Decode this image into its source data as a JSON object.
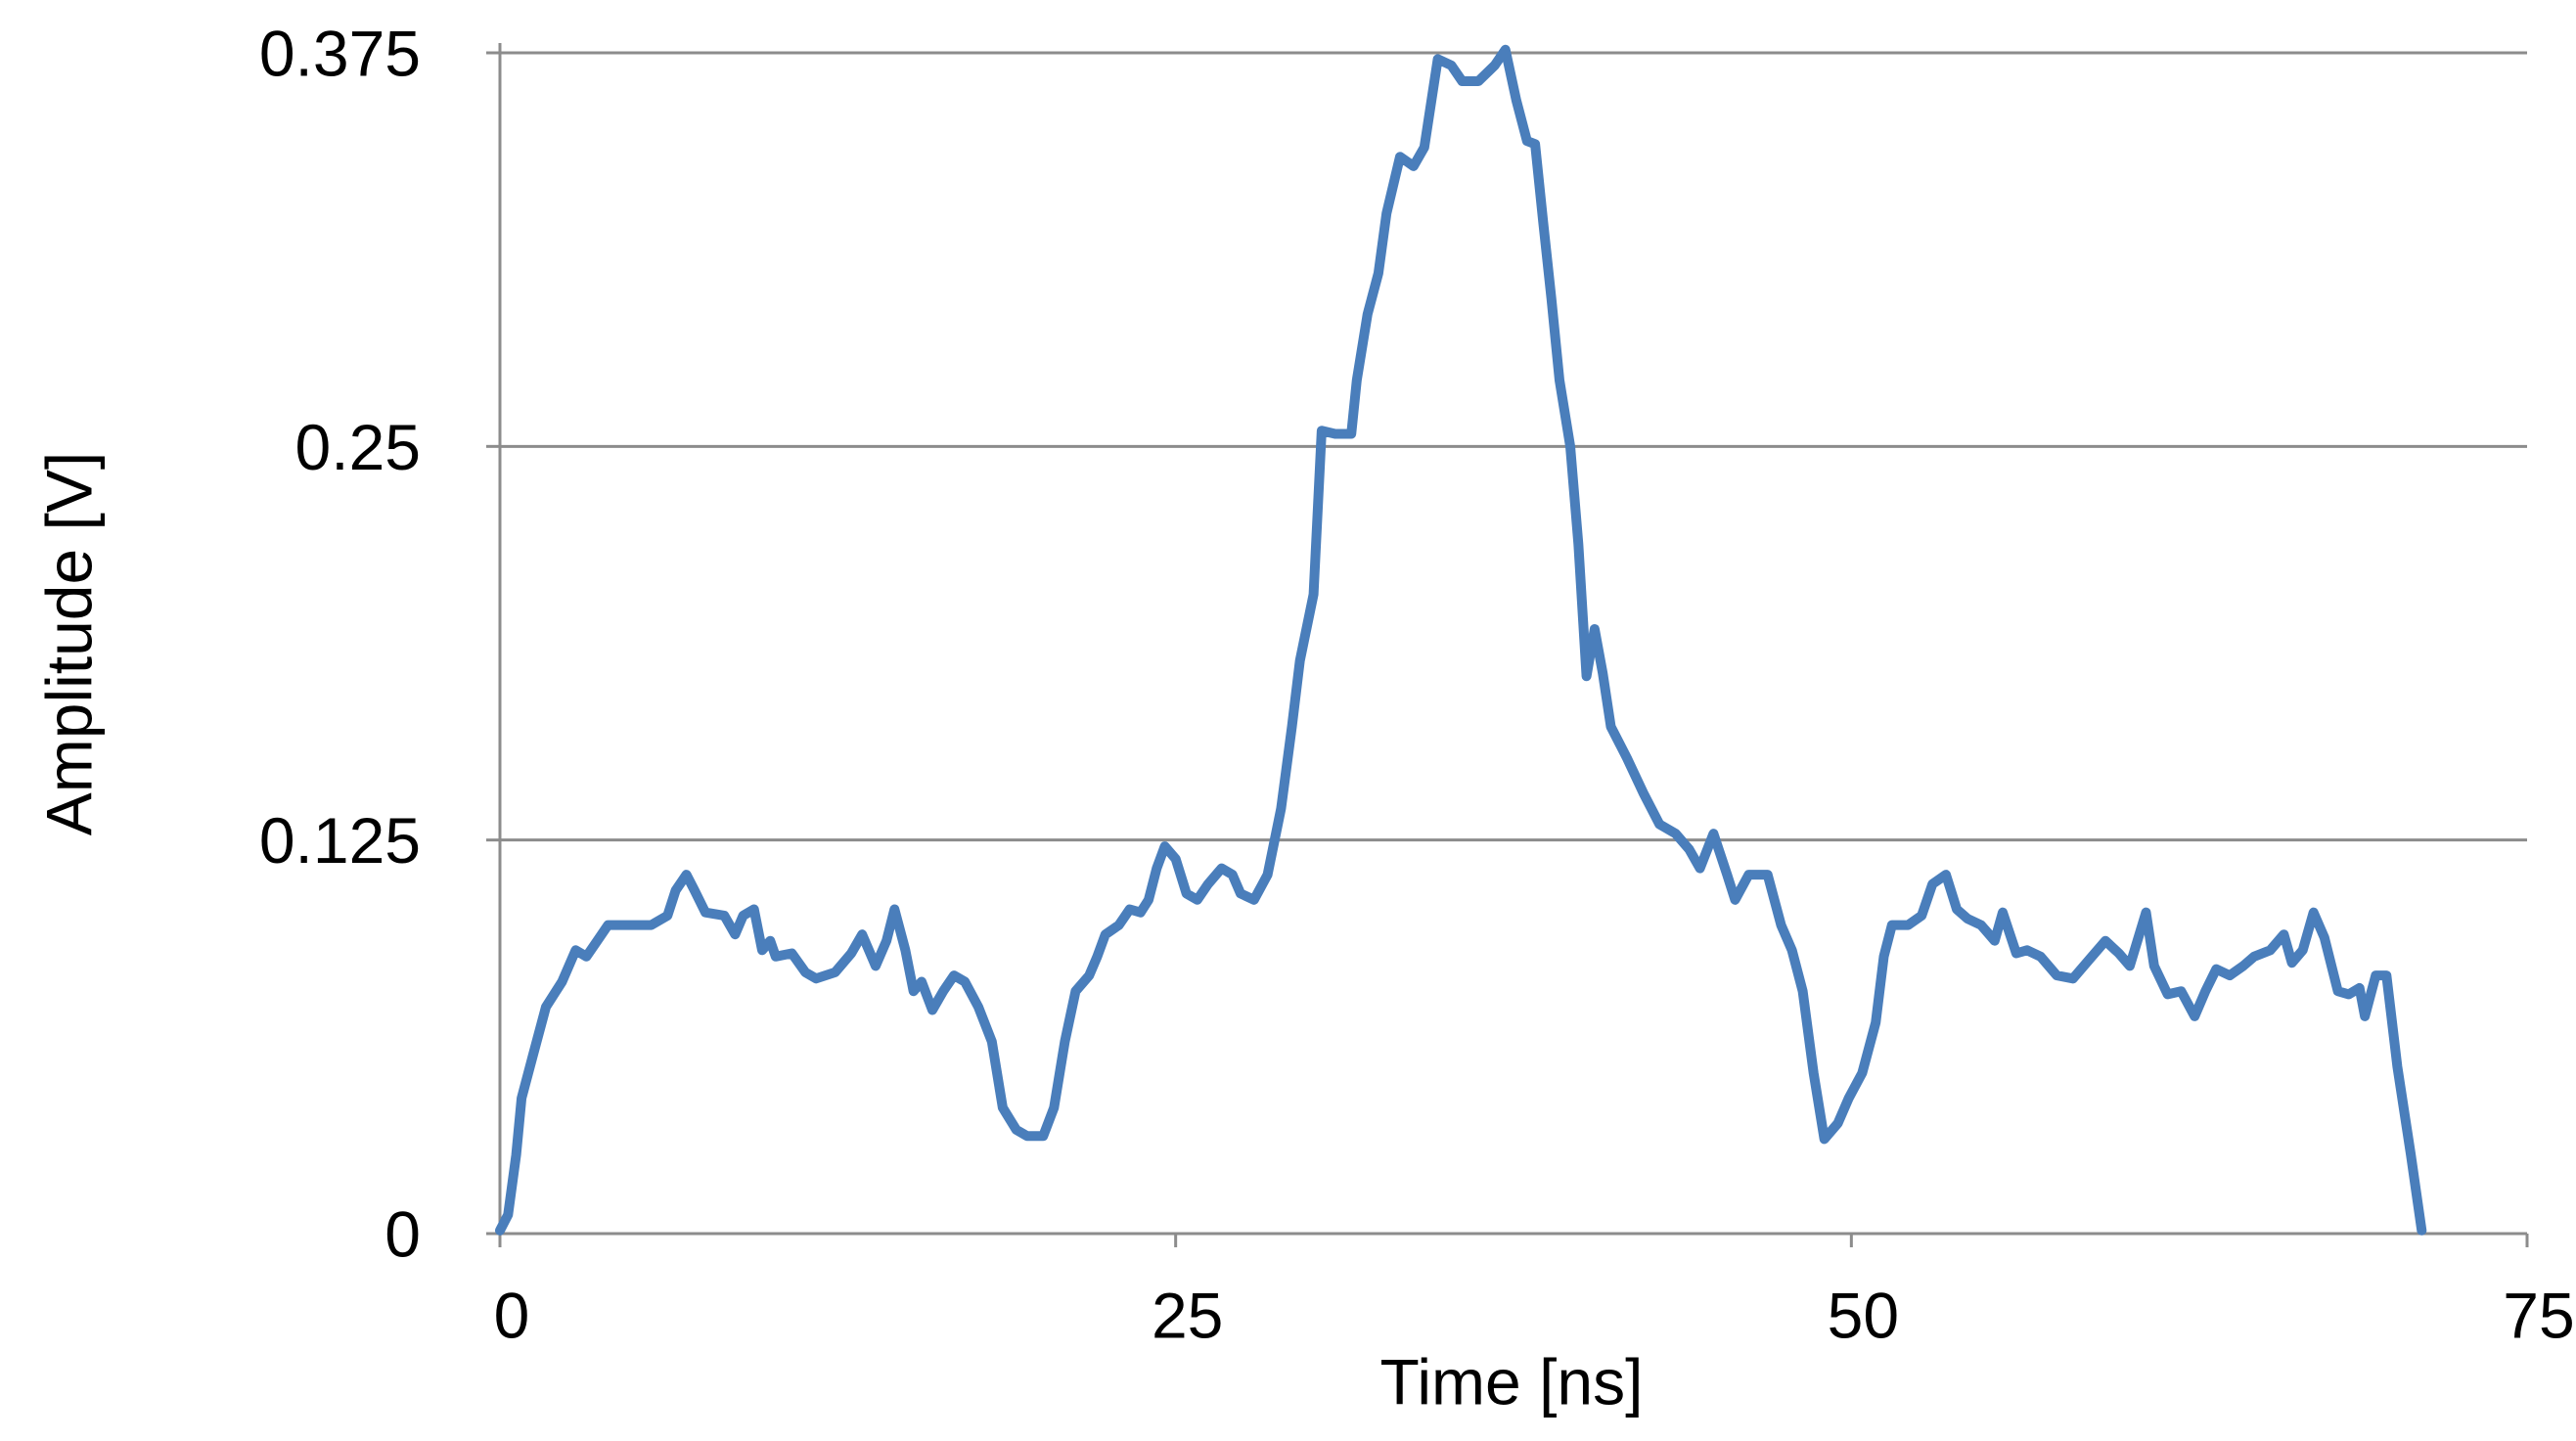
{
  "chart_data": {
    "type": "line",
    "x_label": "Time [ns]",
    "y_label": "Amplitude [V]",
    "xlim": [
      0,
      75
    ],
    "xticks": [
      0,
      25,
      50,
      75
    ],
    "ylim": [
      0,
      0.375
    ],
    "yticks": [
      0,
      0.125,
      0.25,
      0.375
    ],
    "grid": true,
    "x": [
      0,
      0.3,
      0.6,
      0.8,
      1.2,
      1.7,
      2.3,
      2.8,
      3.2,
      3.6,
      4.0,
      4.7,
      5.6,
      6.2,
      6.5,
      6.9,
      7.2,
      7.6,
      8.3,
      8.7,
      9.0,
      9.4,
      9.7,
      10.0,
      10.2,
      10.8,
      11.3,
      11.7,
      12.4,
      13.0,
      13.4,
      13.9,
      14.3,
      14.6,
      15.0,
      15.3,
      15.6,
      16.0,
      16.4,
      16.8,
      17.2,
      17.7,
      18.2,
      18.6,
      19.1,
      19.5,
      20.1,
      20.5,
      20.9,
      21.3,
      21.8,
      22.1,
      22.4,
      22.9,
      23.3,
      23.7,
      24.0,
      24.3,
      24.6,
      25.0,
      25.4,
      25.8,
      26.2,
      26.7,
      27.1,
      27.4,
      27.9,
      28.4,
      28.9,
      29.3,
      29.6,
      30.1,
      30.4,
      30.9,
      31.5,
      31.7,
      32.1,
      32.5,
      32.8,
      33.3,
      33.8,
      34.2,
      34.7,
      35.2,
      35.6,
      36.2,
      36.8,
      37.2,
      37.6,
      38.0,
      38.3,
      38.6,
      38.9,
      39.2,
      39.6,
      39.9,
      40.2,
      40.5,
      40.8,
      41.1,
      41.7,
      42.3,
      42.9,
      43.5,
      44.0,
      44.4,
      44.9,
      45.4,
      45.7,
      46.2,
      46.9,
      47.4,
      47.8,
      48.2,
      48.6,
      49.0,
      49.5,
      49.9,
      50.4,
      50.9,
      51.2,
      51.5,
      52.1,
      52.6,
      53.0,
      53.5,
      53.9,
      54.3,
      54.8,
      55.3,
      55.6,
      56.1,
      56.5,
      57.0,
      57.6,
      58.2,
      58.8,
      59.4,
      59.9,
      60.3,
      60.9,
      61.2,
      61.7,
      62.2,
      62.7,
      63.1,
      63.5,
      64.0,
      64.5,
      64.9,
      65.5,
      66.0,
      66.3,
      66.7,
      67.1,
      67.5,
      68.0,
      68.4,
      68.8,
      69.0,
      69.4,
      69.8,
      70.2,
      70.7,
      71.1
    ],
    "series": [
      {
        "color": "#4a7ebb",
        "values": [
          0.001,
          0.006,
          0.025,
          0.043,
          0.056,
          0.072,
          0.08,
          0.09,
          0.088,
          0.093,
          0.098,
          0.098,
          0.098,
          0.101,
          0.109,
          0.114,
          0.109,
          0.102,
          0.101,
          0.095,
          0.101,
          0.103,
          0.09,
          0.093,
          0.088,
          0.089,
          0.083,
          0.081,
          0.083,
          0.089,
          0.095,
          0.085,
          0.093,
          0.103,
          0.09,
          0.077,
          0.08,
          0.071,
          0.077,
          0.082,
          0.08,
          0.072,
          0.061,
          0.04,
          0.033,
          0.031,
          0.031,
          0.04,
          0.061,
          0.077,
          0.082,
          0.088,
          0.095,
          0.098,
          0.103,
          0.102,
          0.106,
          0.116,
          0.123,
          0.119,
          0.108,
          0.106,
          0.111,
          0.116,
          0.114,
          0.108,
          0.106,
          0.114,
          0.135,
          0.161,
          0.182,
          0.203,
          0.255,
          0.254,
          0.254,
          0.271,
          0.292,
          0.305,
          0.324,
          0.342,
          0.339,
          0.345,
          0.373,
          0.371,
          0.366,
          0.366,
          0.371,
          0.376,
          0.36,
          0.347,
          0.346,
          0.321,
          0.297,
          0.271,
          0.25,
          0.219,
          0.177,
          0.192,
          0.178,
          0.161,
          0.151,
          0.14,
          0.13,
          0.127,
          0.122,
          0.116,
          0.127,
          0.114,
          0.106,
          0.114,
          0.114,
          0.098,
          0.09,
          0.077,
          0.051,
          0.03,
          0.035,
          0.043,
          0.051,
          0.067,
          0.088,
          0.098,
          0.098,
          0.101,
          0.111,
          0.114,
          0.103,
          0.1,
          0.098,
          0.093,
          0.102,
          0.089,
          0.09,
          0.088,
          0.082,
          0.081,
          0.087,
          0.093,
          0.089,
          0.085,
          0.102,
          0.085,
          0.076,
          0.077,
          0.069,
          0.077,
          0.084,
          0.082,
          0.085,
          0.088,
          0.09,
          0.095,
          0.086,
          0.09,
          0.102,
          0.094,
          0.077,
          0.076,
          0.078,
          0.069,
          0.082,
          0.082,
          0.053,
          0.025,
          0.001
        ]
      }
    ]
  }
}
